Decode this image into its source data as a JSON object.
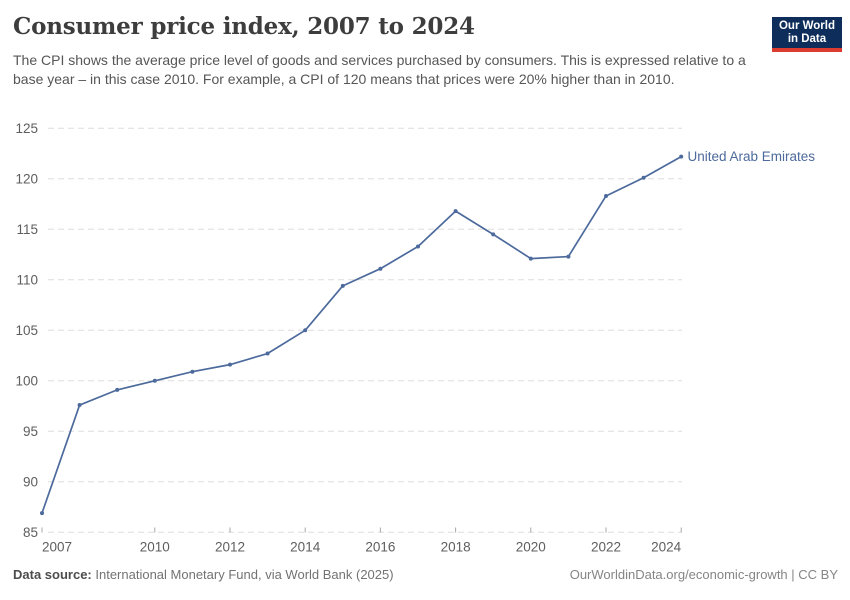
{
  "header": {
    "title": "Consumer price index, 2007 to 2024",
    "subtitle": "The CPI shows the average price level of goods and services purchased by consumers. This is expressed relative to a base year – in this case 2010. For example, a CPI of 120 means that prices were 20% higher than in 2010.",
    "logo": {
      "line1": "Our World",
      "line2": "in Data",
      "bg_color": "#0f2d5a",
      "accent_color": "#dc3b2f"
    }
  },
  "chart_data": {
    "type": "line",
    "title": "Consumer price index, 2007 to 2024",
    "x": [
      2007,
      2008,
      2009,
      2010,
      2011,
      2012,
      2013,
      2014,
      2015,
      2016,
      2017,
      2018,
      2019,
      2020,
      2021,
      2022,
      2023,
      2024
    ],
    "series": [
      {
        "name": "United Arab Emirates",
        "color": "#4C6A9C",
        "values": [
          86.9,
          97.6,
          99.1,
          100.0,
          100.9,
          101.6,
          102.7,
          105.0,
          109.4,
          111.1,
          113.3,
          116.8,
          114.5,
          112.1,
          112.3,
          118.3,
          120.1,
          122.2
        ]
      }
    ],
    "xlabel": "",
    "ylabel": "",
    "x_ticks": [
      2007,
      2010,
      2012,
      2014,
      2016,
      2018,
      2020,
      2022,
      2024
    ],
    "y_ticks": [
      85,
      90,
      95,
      100,
      105,
      110,
      115,
      120,
      125
    ],
    "xlim": [
      2007,
      2024
    ],
    "ylim": [
      85,
      125
    ],
    "grid": "horizontal-dashed",
    "grid_color": "#dedede",
    "tick_color": "#a8a8a8",
    "legend": "end-of-line-label"
  },
  "footer": {
    "source_label": "Data source:",
    "source_text": "International Monetary Fund, via World Bank (2025)",
    "credit": "OurWorldinData.org/economic-growth | CC BY"
  }
}
